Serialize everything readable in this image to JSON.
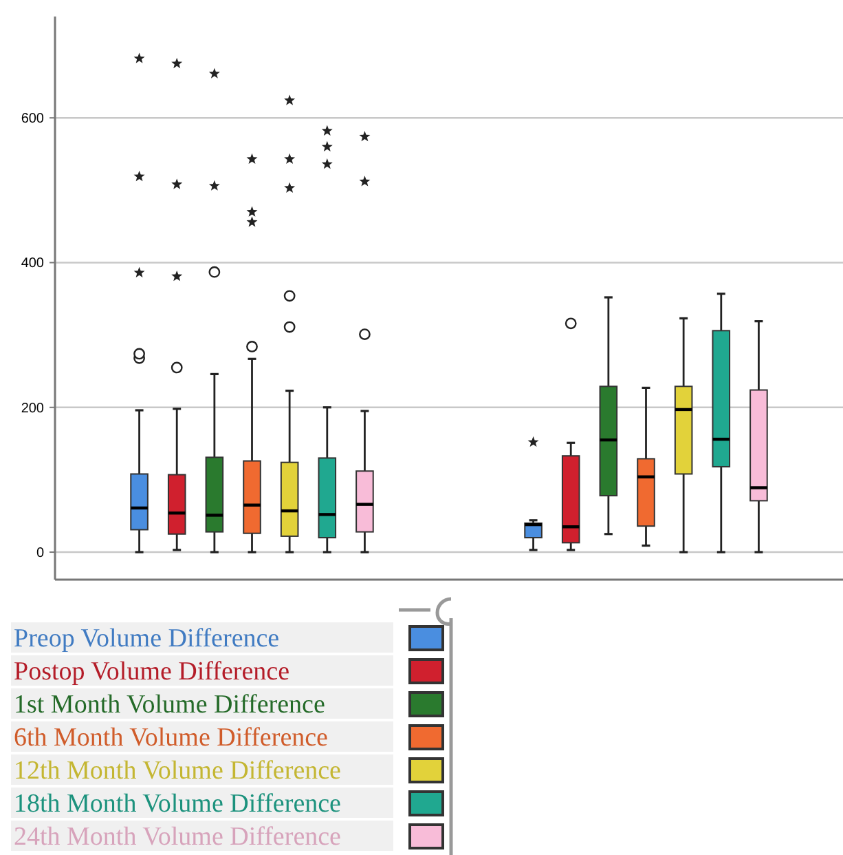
{
  "chart_data": {
    "type": "box",
    "categories": [
      null,
      null
    ],
    "ylim": [
      -38,
      740
    ],
    "yticks": [
      0,
      200,
      400,
      600
    ],
    "grid": "y",
    "legend": "bottom left",
    "series": [
      {
        "name": "Preop Volume Difference",
        "color": "#4a8ee0",
        "boxes": [
          {
            "low": 0,
            "q1": 31,
            "median": 61,
            "q3": 108,
            "high": 196,
            "outliers": [
              268,
              274,
              386,
              519,
              682
            ]
          },
          {
            "low": 3,
            "q1": 20,
            "median": 38,
            "q3": 40,
            "high": 44,
            "outliers": [
              152
            ]
          }
        ]
      },
      {
        "name": "Postop Volume Difference",
        "color": "#d0202e",
        "boxes": [
          {
            "low": 3,
            "q1": 25,
            "median": 54,
            "q3": 107,
            "high": 198,
            "outliers": [
              255,
              381,
              508,
              675
            ]
          },
          {
            "low": 3,
            "q1": 13,
            "median": 35,
            "q3": 133,
            "high": 151,
            "outliers": [
              316
            ]
          }
        ]
      },
      {
        "name": "1st Month Volume Difference",
        "color": "#2a7a2e",
        "boxes": [
          {
            "low": 0,
            "q1": 28,
            "median": 51,
            "q3": 131,
            "high": 246,
            "outliers": [
              387,
              506,
              661
            ]
          },
          {
            "low": 25,
            "q1": 78,
            "median": 155,
            "q3": 229,
            "high": 352
          }
        ]
      },
      {
        "name": "6th Month Volume Difference",
        "color": "#f06a30",
        "boxes": [
          {
            "low": 0,
            "q1": 26,
            "median": 65,
            "q3": 126,
            "high": 267,
            "outliers": [
              284,
              456,
              470,
              543
            ]
          },
          {
            "low": 9,
            "q1": 36,
            "median": 104,
            "q3": 129,
            "high": 227
          }
        ]
      },
      {
        "name": "12th Month Volume Difference",
        "color": "#e2d23a",
        "boxes": [
          {
            "low": 0,
            "q1": 22,
            "median": 57,
            "q3": 124,
            "high": 223,
            "outliers": [
              311,
              354,
              503,
              543,
              624
            ]
          },
          {
            "low": 0,
            "q1": 108,
            "median": 197,
            "q3": 229,
            "high": 323
          }
        ]
      },
      {
        "name": "18th Month Volume Difference",
        "color": "#20a890",
        "boxes": [
          {
            "low": 0,
            "q1": 20,
            "median": 52,
            "q3": 130,
            "high": 200,
            "outliers": [
              536,
              560,
              582
            ]
          },
          {
            "low": 0,
            "q1": 118,
            "median": 156,
            "q3": 306,
            "high": 357
          }
        ]
      },
      {
        "name": "24th Month Volume Difference",
        "color": "#f8bcd8",
        "boxes": [
          {
            "low": 0,
            "q1": 28,
            "median": 66,
            "q3": 112,
            "high": 195,
            "outliers": [
              301,
              512,
              574
            ]
          },
          {
            "low": 0,
            "q1": 71,
            "median": 89,
            "q3": 224,
            "high": 319
          }
        ]
      }
    ]
  }
}
